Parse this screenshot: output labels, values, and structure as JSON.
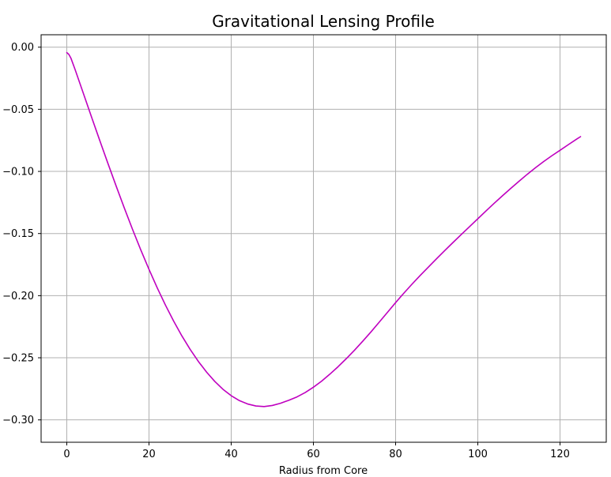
{
  "chart_data": {
    "type": "line",
    "title": "Gravitational Lensing Profile",
    "xlabel": "Radius from Core",
    "ylabel": "",
    "xlim": [
      -6.25,
      131.25
    ],
    "ylim": [
      -0.318,
      0.01
    ],
    "xticks": [
      0,
      20,
      40,
      60,
      80,
      100,
      120
    ],
    "xtick_labels": [
      "0",
      "20",
      "40",
      "60",
      "80",
      "100",
      "120"
    ],
    "yticks": [
      0.0,
      -0.05,
      -0.1,
      -0.15,
      -0.2,
      -0.25,
      -0.3
    ],
    "ytick_labels": [
      "0.00",
      "−0.05",
      "−0.10",
      "−0.15",
      "−0.20",
      "−0.25",
      "−0.30"
    ],
    "grid": true,
    "series": [
      {
        "color": "#bf00bf",
        "x": [
          0,
          0.5,
          1,
          2,
          4,
          6,
          8,
          10,
          12,
          14,
          16,
          18,
          20,
          22,
          24,
          26,
          28,
          30,
          32,
          34,
          36,
          38,
          40,
          42,
          44,
          46,
          48,
          50,
          52,
          54,
          56,
          58,
          60,
          62,
          64,
          66,
          68,
          70,
          72,
          74,
          76,
          78,
          80,
          82,
          84,
          86,
          88,
          90,
          92,
          94,
          96,
          98,
          100,
          102,
          104,
          106,
          108,
          110,
          112,
          114,
          116,
          118,
          120,
          122,
          124,
          125
        ],
        "y": [
          -0.0044,
          -0.0058,
          -0.0088,
          -0.0178,
          -0.0369,
          -0.056,
          -0.0749,
          -0.0935,
          -0.1117,
          -0.1295,
          -0.1467,
          -0.1632,
          -0.1788,
          -0.1937,
          -0.2076,
          -0.2205,
          -0.2324,
          -0.2432,
          -0.2529,
          -0.2615,
          -0.269,
          -0.2754,
          -0.2805,
          -0.2845,
          -0.2872,
          -0.2888,
          -0.2893,
          -0.2884,
          -0.2866,
          -0.2842,
          -0.2815,
          -0.278,
          -0.2737,
          -0.2688,
          -0.2632,
          -0.2572,
          -0.2507,
          -0.2439,
          -0.2367,
          -0.2292,
          -0.2214,
          -0.2135,
          -0.2056,
          -0.198,
          -0.1907,
          -0.1837,
          -0.1769,
          -0.1702,
          -0.1636,
          -0.1571,
          -0.1507,
          -0.1444,
          -0.1381,
          -0.1318,
          -0.1256,
          -0.1196,
          -0.1137,
          -0.108,
          -0.1024,
          -0.0971,
          -0.0921,
          -0.0874,
          -0.083,
          -0.0785,
          -0.0741,
          -0.072
        ]
      }
    ]
  }
}
